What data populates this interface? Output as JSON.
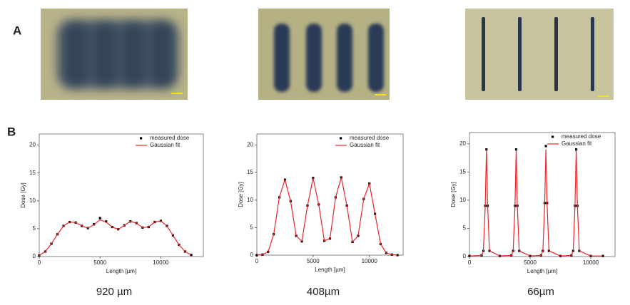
{
  "panels": {
    "a": "A",
    "b": "B"
  },
  "chart_data": [
    {
      "type": "line",
      "caption": "920 µm",
      "xlabel": "Length [µm]",
      "ylabel": "Dose [Gy]",
      "x": [
        0,
        500,
        1000,
        1500,
        2000,
        2500,
        3000,
        3500,
        4000,
        4500,
        5000,
        5500,
        6000,
        6500,
        7000,
        7500,
        8000,
        8500,
        9000,
        9500,
        10000,
        10500,
        11000,
        11500,
        12000,
        12500
      ],
      "series": [
        {
          "name": "measured dose",
          "color": "#000000",
          "marker": "square",
          "values": [
            0.2,
            0.9,
            2.3,
            4.0,
            5.5,
            6.2,
            6.1,
            5.5,
            5.1,
            5.8,
            6.9,
            6.3,
            5.3,
            4.9,
            5.6,
            6.3,
            6.0,
            5.2,
            5.3,
            6.2,
            6.4,
            5.5,
            3.8,
            2.1,
            0.9,
            0.3
          ]
        },
        {
          "name": "Gaussian fit",
          "color": "#e8262a",
          "values": [
            0.2,
            0.9,
            2.3,
            4.0,
            5.5,
            6.2,
            6.1,
            5.5,
            5.1,
            5.7,
            6.6,
            6.2,
            5.3,
            4.9,
            5.6,
            6.3,
            6.0,
            5.2,
            5.3,
            6.2,
            6.4,
            5.5,
            3.8,
            2.1,
            0.9,
            0.3
          ]
        }
      ],
      "xlim": [
        0,
        13500
      ],
      "ylim": [
        0,
        22
      ],
      "xticks": [
        0,
        5000,
        10000
      ],
      "yticks": [
        0,
        5,
        10,
        15,
        20
      ]
    },
    {
      "type": "line",
      "caption": "408µm",
      "xlabel": "Length [µm]",
      "ylabel": "Dose [Gy]",
      "x": [
        0,
        500,
        1000,
        1500,
        2000,
        2500,
        3000,
        3500,
        4000,
        4500,
        5000,
        5500,
        6000,
        6500,
        7000,
        7500,
        8000,
        8500,
        9000,
        9500,
        10000,
        10500,
        11000,
        11500,
        12000,
        12500
      ],
      "series": [
        {
          "name": "measured dose",
          "color": "#000000",
          "marker": "square",
          "values": [
            0,
            0.1,
            0.6,
            3.8,
            10.5,
            13.7,
            9.8,
            3.5,
            2.5,
            9.0,
            14.0,
            9.2,
            2.6,
            3.0,
            10.5,
            14.1,
            9.0,
            2.4,
            3.5,
            10.2,
            13.0,
            7.5,
            2.0,
            0.4,
            0.1,
            0
          ]
        },
        {
          "name": "Gaussian fit",
          "color": "#e8262a",
          "values": [
            0,
            0.1,
            0.6,
            3.8,
            10.5,
            13.7,
            9.8,
            3.5,
            2.5,
            9.0,
            14.0,
            9.2,
            2.6,
            3.0,
            10.5,
            14.1,
            9.0,
            2.4,
            3.5,
            10.2,
            13.0,
            7.5,
            2.0,
            0.4,
            0.1,
            0
          ]
        }
      ],
      "xlim": [
        0,
        13000
      ],
      "ylim": [
        0,
        22
      ],
      "xticks": [
        0,
        5000,
        10000
      ],
      "yticks": [
        0,
        5,
        10,
        15,
        20
      ]
    },
    {
      "type": "line",
      "caption": "66µm",
      "xlabel": "Length [µm]",
      "ylabel": "Dose [Gy]",
      "x": [
        0,
        1000,
        1150,
        1300,
        1400,
        1500,
        1650,
        2500,
        3450,
        3600,
        3750,
        3850,
        3950,
        4100,
        5000,
        5900,
        6050,
        6200,
        6300,
        6400,
        6550,
        7500,
        8400,
        8550,
        8700,
        8800,
        8900,
        9050,
        10000,
        11000
      ],
      "series": [
        {
          "name": "measured dose",
          "color": "#000000",
          "marker": "square",
          "values": [
            0.1,
            0.2,
            1.0,
            9.0,
            19.0,
            9.0,
            1.0,
            0.1,
            0.2,
            1.0,
            9.0,
            19.0,
            9.0,
            1.0,
            0.1,
            0.2,
            1.0,
            9.5,
            19.6,
            9.5,
            1.0,
            0.1,
            0.2,
            1.0,
            9.0,
            19.0,
            9.0,
            1.0,
            0.1,
            0.1
          ]
        },
        {
          "name": "Gaussian fit",
          "color": "#e8262a",
          "values": [
            0.1,
            0.2,
            1.0,
            9.0,
            19.0,
            9.0,
            1.0,
            0.1,
            0.2,
            1.0,
            9.0,
            19.0,
            9.0,
            1.0,
            0.1,
            0.2,
            1.0,
            9.2,
            19.0,
            9.2,
            1.0,
            0.1,
            0.2,
            1.0,
            9.0,
            19.0,
            9.0,
            1.0,
            0.1,
            0.1
          ]
        }
      ],
      "xlim": [
        0,
        12000
      ],
      "ylim": [
        0,
        22
      ],
      "xticks": [
        0,
        5000,
        10000
      ],
      "yticks": [
        0,
        5,
        10,
        15,
        20
      ]
    }
  ]
}
